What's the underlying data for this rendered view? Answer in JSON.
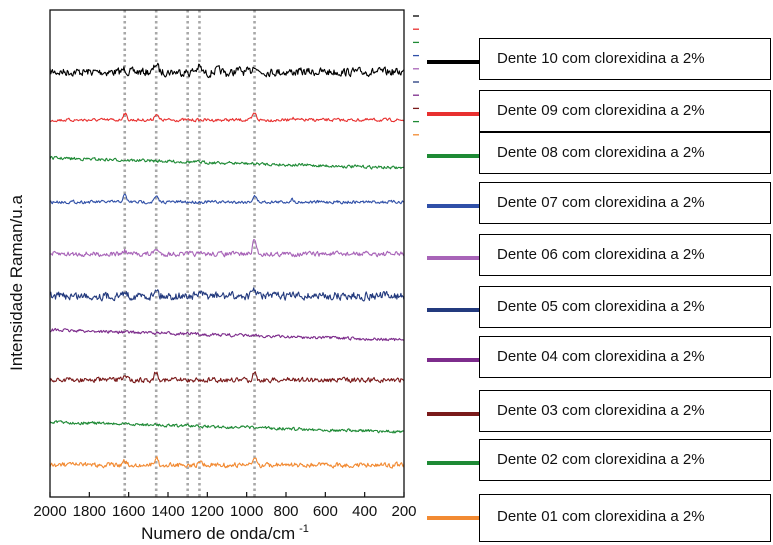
{
  "chart_data": {
    "type": "line",
    "xlabel": "Numero de onda/cm",
    "xlabel_superscript": "-1",
    "ylabel": "Intensidade Raman/u.a",
    "xlim": [
      2000,
      200
    ],
    "x_ticks": [
      2000,
      1800,
      1600,
      1400,
      1200,
      1000,
      800,
      600,
      400,
      200
    ],
    "y_ticks_shown": false,
    "reference_lines_x": [
      1620,
      1460,
      1300,
      1240,
      960
    ],
    "series": [
      {
        "name": "Dente 10 com clorexidina a 2%",
        "color": "#000000",
        "baseline_slope": "flat",
        "noise": "high",
        "peaks": [
          {
            "x": 1620,
            "h": 0.6
          },
          {
            "x": 1460,
            "h": 1.6
          },
          {
            "x": 1240,
            "h": 0.8
          },
          {
            "x": 960,
            "h": 1.5
          }
        ]
      },
      {
        "name": "Dente 09 com clorexidina a 2%",
        "color": "#e8302f",
        "baseline_slope": "flat",
        "noise": "low",
        "peaks": [
          {
            "x": 1620,
            "h": 1.3
          },
          {
            "x": 1460,
            "h": 1.2
          },
          {
            "x": 960,
            "h": 1.3
          },
          {
            "x": 770,
            "h": 0.5
          }
        ]
      },
      {
        "name": "Dente 08 com clorexidina a 2%",
        "color": "#1e8a35",
        "baseline_slope": "descending",
        "noise": "low",
        "peaks": []
      },
      {
        "name": "Dente 07 com clorexidina a 2%",
        "color": "#3050a8",
        "baseline_slope": "flat",
        "noise": "low",
        "peaks": [
          {
            "x": 1620,
            "h": 1.3
          },
          {
            "x": 1460,
            "h": 1.0
          },
          {
            "x": 960,
            "h": 1.2
          },
          {
            "x": 770,
            "h": 0.5
          }
        ]
      },
      {
        "name": "Dente 06 com clorexidina a 2%",
        "color": "#a864b8",
        "baseline_slope": "flat",
        "noise": "medium",
        "peaks": [
          {
            "x": 1620,
            "h": 0.6
          },
          {
            "x": 1460,
            "h": 1.0
          },
          {
            "x": 960,
            "h": 2.8
          }
        ]
      },
      {
        "name": "Dente 05 com clorexidina a 2%",
        "color": "#233a7e",
        "baseline_slope": "flat",
        "noise": "high",
        "peaks": [
          {
            "x": 1620,
            "h": 0.8
          },
          {
            "x": 1460,
            "h": 1.6
          },
          {
            "x": 1240,
            "h": 0.6
          },
          {
            "x": 960,
            "h": 1.3
          }
        ]
      },
      {
        "name": "Dente 04 com clorexidina a 2%",
        "color": "#7d2c8c",
        "baseline_slope": "descending",
        "noise": "low",
        "peaks": []
      },
      {
        "name": "Dente 03 com clorexidina a 2%",
        "color": "#7a1a1a",
        "baseline_slope": "flat",
        "noise": "medium",
        "peaks": [
          {
            "x": 1620,
            "h": 1.2
          },
          {
            "x": 1460,
            "h": 1.6
          },
          {
            "x": 960,
            "h": 1.5
          },
          {
            "x": 770,
            "h": 0.5
          }
        ]
      },
      {
        "name": "Dente 02 com clorexidina a 2%",
        "color": "#1e8a35",
        "baseline_slope": "descending",
        "noise": "low",
        "peaks": []
      },
      {
        "name": "Dente 01 com clorexidina a 2%",
        "color": "#f28a32",
        "baseline_slope": "flat",
        "noise": "medium",
        "peaks": [
          {
            "x": 1620,
            "h": 0.6
          },
          {
            "x": 1460,
            "h": 1.4
          },
          {
            "x": 1240,
            "h": 0.5
          },
          {
            "x": 960,
            "h": 1.3
          }
        ]
      }
    ]
  }
}
